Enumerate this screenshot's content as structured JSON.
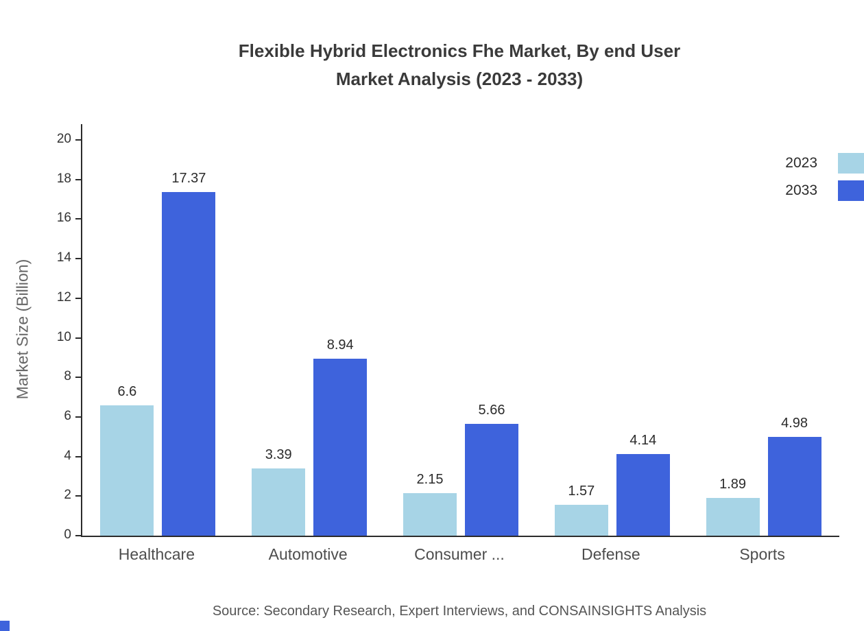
{
  "title": {
    "line1": "Flexible Hybrid Electronics Fhe Market, By end User",
    "line2": "Market Analysis (2023 - 2033)"
  },
  "source": "Source: Secondary Research, Expert Interviews, and CONSAINSIGHTS Analysis",
  "colors": {
    "series_2023": "#A7D4E6",
    "series_2033": "#3E63DC",
    "axis": "#2b2b2b"
  },
  "chart_data": {
    "type": "bar",
    "title": "Flexible Hybrid Electronics Fhe Market, By end User Market Analysis (2023 - 2033)",
    "categories": [
      "Healthcare",
      "Automotive",
      "Consumer ...",
      "Defense",
      "Sports"
    ],
    "series": [
      {
        "name": "2023",
        "color": "#A7D4E6",
        "values": [
          6.6,
          3.39,
          2.15,
          1.57,
          1.89
        ]
      },
      {
        "name": "2033",
        "color": "#3E63DC",
        "values": [
          17.37,
          8.94,
          5.66,
          4.14,
          4.98
        ]
      }
    ],
    "xlabel": "",
    "ylabel": "Market Size (Billion)",
    "ylim": [
      0,
      20
    ],
    "ytick_step": 2,
    "grid": false,
    "legend_position": "top-right",
    "value_labels": true
  }
}
